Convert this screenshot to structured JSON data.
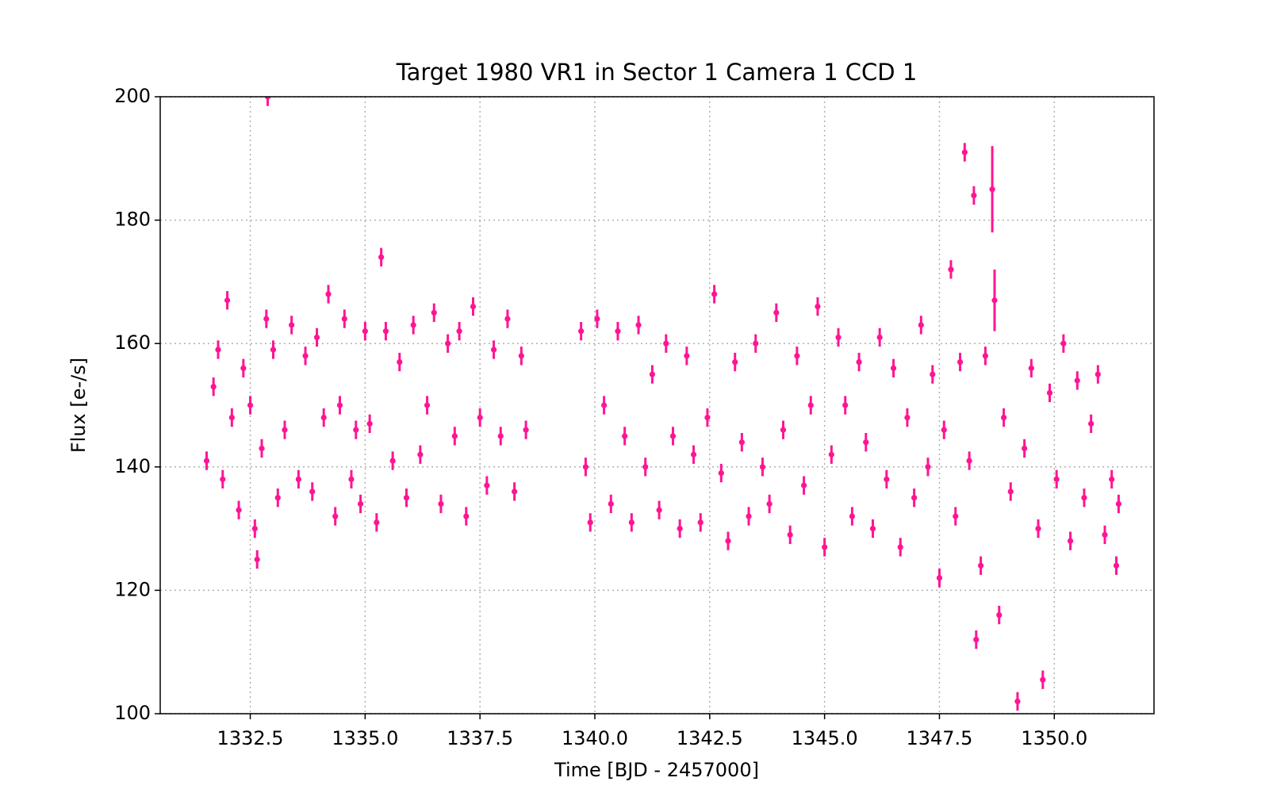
{
  "chart_data": {
    "type": "scatter",
    "title": "Target 1980 VR1 in Sector 1 Camera 1 CCD 1",
    "x_label": "Time [BJD - 2457000]",
    "y_label": "Flux [e-/s]",
    "color": "#ff1493",
    "grid": true,
    "xlim": [
      1330.54,
      1352.17
    ],
    "ylim": [
      100,
      200
    ],
    "xticks": [
      1332.5,
      {
        "value": 1335,
        "label": "1335.0"
      },
      1337.5,
      {
        "value": 1340,
        "label": "1340.0"
      },
      1342.5,
      {
        "value": 1345,
        "label": "1345.0"
      },
      1347.5,
      {
        "value": 1350,
        "label": "1350.0"
      }
    ],
    "yticks": [
      100,
      120,
      140,
      160,
      180,
      200
    ],
    "x": [
      1331.55,
      1331.7,
      1331.8,
      1331.9,
      1332.0,
      1332.1,
      1332.25,
      1332.35,
      1332.5,
      1332.6,
      1332.65,
      1332.75,
      1332.85,
      1332.88,
      1333.0,
      1333.1,
      1333.25,
      1333.4,
      1333.55,
      1333.7,
      1333.85,
      1333.95,
      1334.1,
      1334.2,
      1334.35,
      1334.45,
      1334.55,
      1334.7,
      1334.8,
      1334.9,
      1335.0,
      1335.1,
      1335.25,
      1335.35,
      1335.45,
      1335.6,
      1335.75,
      1335.9,
      1336.05,
      1336.2,
      1336.35,
      1336.5,
      1336.65,
      1336.8,
      1336.95,
      1337.05,
      1337.2,
      1337.35,
      1337.5,
      1337.65,
      1337.8,
      1337.95,
      1338.1,
      1338.25,
      1338.4,
      1338.5,
      1339.7,
      1339.8,
      1339.9,
      1340.05,
      1340.2,
      1340.35,
      1340.5,
      1340.65,
      1340.8,
      1340.95,
      1341.1,
      1341.25,
      1341.4,
      1341.55,
      1341.7,
      1341.85,
      1342.0,
      1342.15,
      1342.3,
      1342.45,
      1342.6,
      1342.75,
      1342.9,
      1343.05,
      1343.2,
      1343.35,
      1343.5,
      1343.65,
      1343.8,
      1343.95,
      1344.1,
      1344.25,
      1344.4,
      1344.55,
      1344.7,
      1344.85,
      1345.0,
      1345.15,
      1345.3,
      1345.45,
      1345.6,
      1345.75,
      1345.9,
      1346.05,
      1346.2,
      1346.35,
      1346.5,
      1346.65,
      1346.8,
      1346.95,
      1347.1,
      1347.25,
      1347.35,
      1347.5,
      1347.6,
      1347.75,
      1347.85,
      1347.95,
      1348.05,
      1348.15,
      1348.25,
      1348.3,
      1348.4,
      1348.5,
      1348.65,
      1348.7,
      1348.8,
      1348.9,
      1349.05,
      1349.2,
      1349.35,
      1349.5,
      1349.65,
      1349.75,
      1349.9,
      1350.05,
      1350.2,
      1350.35,
      1350.5,
      1350.65,
      1350.8,
      1350.95,
      1351.1,
      1351.25,
      1351.35,
      1351.4
    ],
    "values": [
      141,
      153,
      159,
      138,
      167,
      148,
      133,
      156,
      150,
      130,
      125,
      143,
      164,
      200,
      159,
      135,
      146,
      163,
      138,
      158,
      136,
      161,
      148,
      168,
      132,
      150,
      164,
      138,
      146,
      134,
      162,
      147,
      131,
      174,
      162,
      141,
      157,
      135,
      163,
      142,
      150,
      165,
      134,
      160,
      145,
      162,
      132,
      166,
      148,
      137,
      159,
      145,
      164,
      136,
      158,
      146,
      162,
      140,
      131,
      164,
      150,
      134,
      162,
      145,
      131,
      163,
      140,
      155,
      133,
      160,
      145,
      130,
      158,
      142,
      131,
      148,
      168,
      139,
      128,
      157,
      144,
      132,
      160,
      140,
      134,
      165,
      146,
      129,
      158,
      137,
      150,
      166,
      127,
      142,
      161,
      150,
      132,
      157,
      144,
      130,
      161,
      138,
      156,
      127,
      148,
      135,
      163,
      140,
      155,
      122,
      146,
      172,
      132,
      157,
      191,
      141,
      184,
      112,
      124,
      158,
      185,
      167,
      116,
      148,
      136,
      102,
      143,
      156,
      130,
      105.5,
      152,
      138,
      160,
      128,
      154,
      135,
      147,
      155,
      129,
      138,
      124,
      134
    ],
    "errors": [
      1.5,
      1.5,
      1.5,
      1.5,
      1.5,
      1.5,
      1.5,
      1.5,
      1.5,
      1.5,
      1.5,
      1.5,
      1.5,
      1.5,
      1.5,
      1.5,
      1.5,
      1.5,
      1.5,
      1.5,
      1.5,
      1.5,
      1.5,
      1.5,
      1.5,
      1.5,
      1.5,
      1.5,
      1.5,
      1.5,
      1.5,
      1.5,
      1.5,
      1.5,
      1.5,
      1.5,
      1.5,
      1.5,
      1.5,
      1.5,
      1.5,
      1.5,
      1.5,
      1.5,
      1.5,
      1.5,
      1.5,
      1.5,
      1.5,
      1.5,
      1.5,
      1.5,
      1.5,
      1.5,
      1.5,
      1.5,
      1.5,
      1.5,
      1.5,
      1.5,
      1.5,
      1.5,
      1.5,
      1.5,
      1.5,
      1.5,
      1.5,
      1.5,
      1.5,
      1.5,
      1.5,
      1.5,
      1.5,
      1.5,
      1.5,
      1.5,
      1.5,
      1.5,
      1.5,
      1.5,
      1.5,
      1.5,
      1.5,
      1.5,
      1.5,
      1.5,
      1.5,
      1.5,
      1.5,
      1.5,
      1.5,
      1.5,
      1.5,
      1.5,
      1.5,
      1.5,
      1.5,
      1.5,
      1.5,
      1.5,
      1.5,
      1.5,
      1.5,
      1.5,
      1.5,
      1.5,
      1.5,
      1.5,
      1.5,
      1.5,
      1.5,
      1.5,
      1.5,
      1.5,
      1.5,
      1.5,
      1.5,
      1.5,
      1.5,
      1.5,
      7,
      5,
      1.5,
      1.5,
      1.5,
      1.5,
      1.5,
      1.5,
      1.5,
      1.5,
      1.5,
      1.5,
      1.5,
      1.5,
      1.5,
      1.5,
      1.5,
      1.5,
      1.5,
      1.5,
      1.5,
      1.5
    ]
  }
}
